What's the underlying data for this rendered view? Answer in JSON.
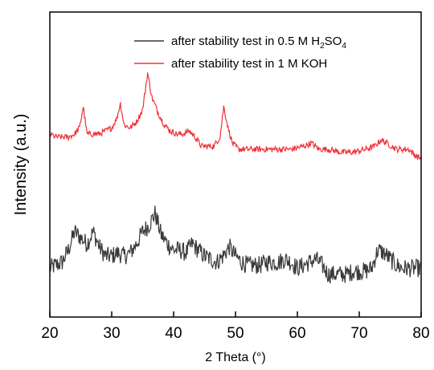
{
  "chart_data": {
    "type": "line",
    "xlabel": "2 Theta (°)",
    "ylabel": "Intensity (a.u.)",
    "xlim": [
      20,
      80
    ],
    "ylim": [
      0,
      1
    ],
    "xticks": [
      "20",
      "30",
      "40",
      "50",
      "60",
      "70",
      "80"
    ],
    "yticks_visible": false,
    "grid": false,
    "legend_position": "top-right",
    "series": [
      {
        "name": "after stability test in 0.5 M H2SO4",
        "legend_parts": [
          "after stability test in 0.5 M H",
          "2",
          "SO",
          "4"
        ],
        "color": "#3a3a3a",
        "noise": 0.03,
        "points": [
          [
            20,
            0.16
          ],
          [
            21,
            0.17
          ],
          [
            22,
            0.18
          ],
          [
            23,
            0.22
          ],
          [
            24,
            0.28
          ],
          [
            25,
            0.26
          ],
          [
            26,
            0.24
          ],
          [
            27,
            0.28
          ],
          [
            28,
            0.23
          ],
          [
            29,
            0.2
          ],
          [
            30,
            0.2
          ],
          [
            31,
            0.21
          ],
          [
            32,
            0.2
          ],
          [
            33,
            0.21
          ],
          [
            34,
            0.24
          ],
          [
            35,
            0.28
          ],
          [
            36,
            0.3
          ],
          [
            37,
            0.34
          ],
          [
            38,
            0.27
          ],
          [
            39,
            0.24
          ],
          [
            40,
            0.22
          ],
          [
            41,
            0.22
          ],
          [
            42,
            0.21
          ],
          [
            43,
            0.24
          ],
          [
            44,
            0.22
          ],
          [
            45,
            0.2
          ],
          [
            46,
            0.19
          ],
          [
            47,
            0.18
          ],
          [
            48,
            0.2
          ],
          [
            49,
            0.23
          ],
          [
            50,
            0.2
          ],
          [
            51,
            0.18
          ],
          [
            52,
            0.17
          ],
          [
            53,
            0.17
          ],
          [
            54,
            0.17
          ],
          [
            55,
            0.18
          ],
          [
            56,
            0.18
          ],
          [
            57,
            0.18
          ],
          [
            58,
            0.19
          ],
          [
            59,
            0.18
          ],
          [
            60,
            0.16
          ],
          [
            61,
            0.17
          ],
          [
            62,
            0.18
          ],
          [
            63,
            0.19
          ],
          [
            64,
            0.17
          ],
          [
            65,
            0.14
          ],
          [
            66,
            0.14
          ],
          [
            67,
            0.14
          ],
          [
            68,
            0.14
          ],
          [
            69,
            0.15
          ],
          [
            70,
            0.15
          ],
          [
            71,
            0.15
          ],
          [
            72,
            0.16
          ],
          [
            73,
            0.22
          ],
          [
            74,
            0.21
          ],
          [
            75,
            0.19
          ],
          [
            76,
            0.17
          ],
          [
            77,
            0.16
          ],
          [
            78,
            0.16
          ],
          [
            79,
            0.16
          ],
          [
            80,
            0.16
          ]
        ]
      },
      {
        "name": "after stability test in 1 M KOH",
        "legend_parts": [
          "after stability test in 1 M KOH"
        ],
        "color": "#ee3338",
        "noise": 0.01,
        "points": [
          [
            20,
            0.6
          ],
          [
            21,
            0.59
          ],
          [
            22,
            0.59
          ],
          [
            23,
            0.59
          ],
          [
            24,
            0.6
          ],
          [
            24.8,
            0.62
          ],
          [
            25.4,
            0.69
          ],
          [
            26,
            0.6
          ],
          [
            27,
            0.6
          ],
          [
            28,
            0.6
          ],
          [
            29,
            0.61
          ],
          [
            30,
            0.62
          ],
          [
            30.8,
            0.65
          ],
          [
            31.4,
            0.7
          ],
          [
            32,
            0.63
          ],
          [
            33,
            0.62
          ],
          [
            34,
            0.64
          ],
          [
            35,
            0.68
          ],
          [
            35.8,
            0.8
          ],
          [
            36.5,
            0.72
          ],
          [
            37.5,
            0.67
          ],
          [
            38.5,
            0.63
          ],
          [
            39.5,
            0.61
          ],
          [
            40.5,
            0.6
          ],
          [
            41.5,
            0.6
          ],
          [
            42.5,
            0.61
          ],
          [
            43.5,
            0.59
          ],
          [
            44.5,
            0.56
          ],
          [
            45.5,
            0.56
          ],
          [
            46.5,
            0.56
          ],
          [
            47.5,
            0.59
          ],
          [
            48.1,
            0.69
          ],
          [
            48.8,
            0.62
          ],
          [
            49.5,
            0.57
          ],
          [
            50.5,
            0.55
          ],
          [
            51.5,
            0.55
          ],
          [
            53,
            0.55
          ],
          [
            55,
            0.55
          ],
          [
            57,
            0.55
          ],
          [
            59,
            0.55
          ],
          [
            61,
            0.56
          ],
          [
            62.3,
            0.57
          ],
          [
            63.5,
            0.55
          ],
          [
            65,
            0.55
          ],
          [
            67,
            0.54
          ],
          [
            69,
            0.54
          ],
          [
            71,
            0.55
          ],
          [
            72.5,
            0.56
          ],
          [
            73.5,
            0.58
          ],
          [
            74.5,
            0.57
          ],
          [
            76,
            0.55
          ],
          [
            78,
            0.55
          ],
          [
            79,
            0.53
          ],
          [
            80,
            0.52
          ]
        ]
      }
    ]
  }
}
